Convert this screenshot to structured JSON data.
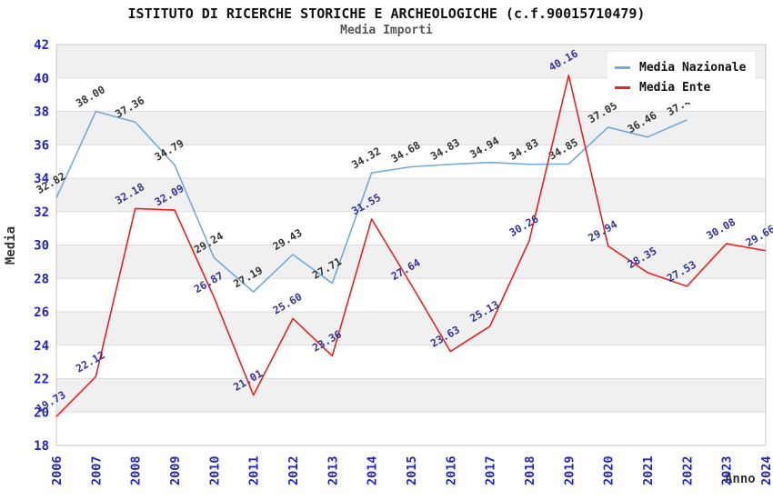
{
  "header": {
    "title": "ISTITUTO DI RICERCHE STORICHE E ARCHEOLOGICHE (c.f.90015710479)",
    "subtitle": "Media Importi"
  },
  "axes": {
    "y_title": "Media",
    "x_title": "Anno",
    "y_min": 18,
    "y_max": 42,
    "y_step": 2,
    "tick_color": "#2222cc",
    "axis_title_color": "#333333"
  },
  "style": {
    "band_color": "#f0f0f0",
    "grid_color": "#dcdcdc",
    "border_color": "#c8c8c8"
  },
  "chart_data": {
    "type": "line",
    "title": "ISTITUTO DI RICERCHE STORICHE E ARCHEOLOGICHE (c.f.90015710479)",
    "subtitle": "Media Importi",
    "xlabel": "Anno",
    "ylabel": "Media",
    "ylim": [
      18,
      42
    ],
    "grid": "horizontal-bands",
    "legend_position": "top-right",
    "categories": [
      2006,
      2007,
      2008,
      2009,
      2010,
      2011,
      2012,
      2013,
      2014,
      2015,
      2016,
      2017,
      2018,
      2019,
      2020,
      2021,
      2022,
      2023,
      2024
    ],
    "series": [
      {
        "name": "Media Nazionale",
        "color": "#74a9db",
        "label_color": "#333333",
        "x": [
          2006,
          2007,
          2008,
          2009,
          2010,
          2011,
          2012,
          2013,
          2014,
          2015,
          2016,
          2017,
          2018,
          2019,
          2020,
          2021,
          2022
        ],
        "values": [
          32.82,
          38.0,
          37.36,
          34.79,
          29.24,
          27.19,
          29.43,
          27.71,
          34.32,
          34.68,
          34.83,
          34.94,
          34.83,
          34.85,
          37.05,
          36.46,
          37.49
        ]
      },
      {
        "name": "Media Ente",
        "color": "#e62222",
        "label_color": "#333399",
        "x": [
          2006,
          2007,
          2008,
          2009,
          2010,
          2011,
          2012,
          2013,
          2014,
          2015,
          2016,
          2017,
          2018,
          2019,
          2020,
          2021,
          2022,
          2023,
          2024
        ],
        "values": [
          19.73,
          22.12,
          32.18,
          32.09,
          26.87,
          21.01,
          25.6,
          23.36,
          31.55,
          27.64,
          23.63,
          25.13,
          30.26,
          40.16,
          29.94,
          28.35,
          27.53,
          30.08,
          29.66
        ]
      }
    ]
  }
}
